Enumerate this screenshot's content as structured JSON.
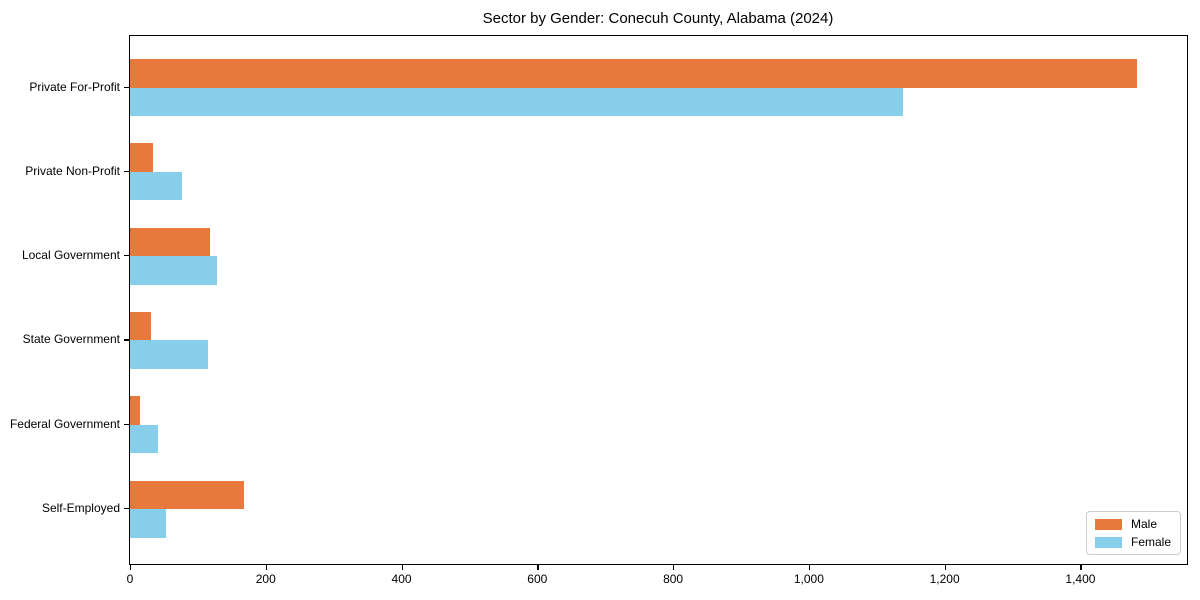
{
  "chart_data": {
    "type": "bar",
    "orientation": "horizontal",
    "title": "Sector by Gender: Conecuh County, Alabama (2024)",
    "xlabel": "",
    "ylabel": "",
    "categories": [
      "Private For-Profit",
      "Private Non-Profit",
      "Local Government",
      "State Government",
      "Federal Government",
      "Self-Employed"
    ],
    "series": [
      {
        "name": "Male",
        "color": "#e8793d",
        "values": [
          1483,
          34,
          118,
          31,
          15,
          168
        ]
      },
      {
        "name": "Female",
        "color": "#87ceeb",
        "values": [
          1138,
          77,
          128,
          115,
          41,
          53
        ]
      }
    ],
    "xlim": [
      0,
      1557
    ],
    "x_tick_values": [
      0,
      200,
      400,
      600,
      800,
      1000,
      1200,
      1400
    ],
    "x_tick_labels": [
      "0",
      "200",
      "400",
      "600",
      "800",
      "1,000",
      "1,200",
      "1,400"
    ],
    "grid": false,
    "legend": {
      "position": "lower right"
    },
    "colors": {
      "spine": "#000000",
      "background": "#ffffff",
      "legend_border": "#cccccc",
      "text": "#000000"
    }
  }
}
